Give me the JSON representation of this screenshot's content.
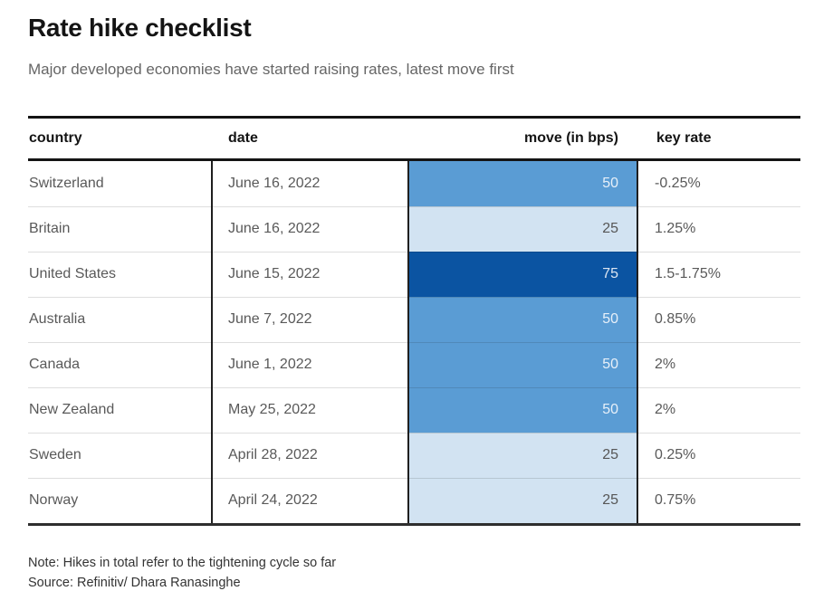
{
  "page": {
    "title": "Rate hike checklist",
    "subtitle": "Major developed economies have started raising rates, latest move first",
    "note": "Note: Hikes in total refer to the tightening cycle so far",
    "source": "Source: Refinitiv/ Dhara Ranasinghe"
  },
  "table": {
    "columns": [
      "country",
      "date",
      "move (in bps)",
      "key rate"
    ],
    "rows": [
      {
        "country": "Switzerland",
        "date": "June 16, 2022",
        "move": "50",
        "key_rate": "-0.25%",
        "bar_color": "#5a9cd4",
        "bar_text_color": "#e7f0f9"
      },
      {
        "country": "Britain",
        "date": "June 16, 2022",
        "move": "25",
        "key_rate": "1.25%",
        "bar_color": "#d2e3f2",
        "bar_text_color": "#565656"
      },
      {
        "country": "United States",
        "date": "June 15, 2022",
        "move": "75",
        "key_rate": "1.5-1.75%",
        "bar_color": "#0b54a2",
        "bar_text_color": "#dce6f2"
      },
      {
        "country": "Australia",
        "date": "June 7, 2022",
        "move": "50",
        "key_rate": "0.85%",
        "bar_color": "#5a9cd4",
        "bar_text_color": "#e7f0f9"
      },
      {
        "country": "Canada",
        "date": "June 1, 2022",
        "move": "50",
        "key_rate": "2%",
        "bar_color": "#5a9cd4",
        "bar_text_color": "#e7f0f9"
      },
      {
        "country": "New Zealand",
        "date": "May 25, 2022",
        "move": "50",
        "key_rate": "2%",
        "bar_color": "#5a9cd4",
        "bar_text_color": "#e7f0f9"
      },
      {
        "country": "Sweden",
        "date": "April 28, 2022",
        "move": "25",
        "key_rate": "0.25%",
        "bar_color": "#d2e3f2",
        "bar_text_color": "#565656"
      },
      {
        "country": "Norway",
        "date": "April 24, 2022",
        "move": "25",
        "key_rate": "0.75%",
        "bar_color": "#d2e3f2",
        "bar_text_color": "#565656"
      }
    ]
  },
  "colors": {
    "move_75": "#0b54a2",
    "move_50": "#5a9cd4",
    "move_25": "#d2e3f2",
    "rule_dark": "#141414",
    "body_text": "#595959"
  },
  "chart_data": {
    "type": "table",
    "title": "Rate hike checklist",
    "subtitle": "Major developed economies have started raising rates, latest move first",
    "columns": [
      "country",
      "date",
      "move (in bps)",
      "key rate"
    ],
    "rows": [
      [
        "Switzerland",
        "June 16, 2022",
        50,
        "-0.25%"
      ],
      [
        "Britain",
        "June 16, 2022",
        25,
        "1.25%"
      ],
      [
        "United States",
        "June 15, 2022",
        75,
        "1.5-1.75%"
      ],
      [
        "Australia",
        "June 7, 2022",
        50,
        "0.85%"
      ],
      [
        "Canada",
        "June 1, 2022",
        50,
        "2%"
      ],
      [
        "New Zealand",
        "May 25, 2022",
        50,
        "2%"
      ],
      [
        "Sweden",
        "April 28, 2022",
        25,
        "0.25%"
      ],
      [
        "Norway",
        "April 24, 2022",
        25,
        "0.75%"
      ]
    ],
    "color_encoding": {
      "variable": "move (in bps)",
      "scale": {
        "25": "#d2e3f2",
        "50": "#5a9cd4",
        "75": "#0b54a2"
      }
    },
    "note": "Note: Hikes in total refer to the tightening cycle so far",
    "source": "Source: Refinitiv/ Dhara Ranasinghe"
  }
}
